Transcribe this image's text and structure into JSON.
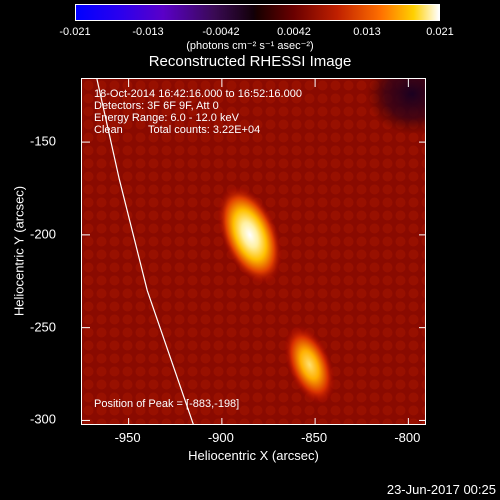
{
  "chart_data": {
    "type": "heatmap",
    "title": "Reconstructed RHESSI Image",
    "xlabel": "Heliocentric X (arcsec)",
    "ylabel": "Heliocentric Y (arcsec)",
    "xlim": [
      -975,
      -790
    ],
    "ylim": [
      -303,
      -116
    ],
    "xticks": [
      "-950",
      "-900",
      "-850",
      "-800"
    ],
    "xtick_values": [
      -950,
      -900,
      -850,
      -800
    ],
    "yticks": [
      "-150",
      "-200",
      "-250",
      "-300"
    ],
    "ytick_values": [
      -150,
      -200,
      -250,
      -300
    ],
    "colorbar": {
      "min": -0.021,
      "max": 0.021,
      "ticks": [
        "-0.021",
        "-0.013",
        "-0.0042",
        "0.0042",
        "0.013",
        "0.021"
      ],
      "tick_values": [
        -0.021,
        -0.0126,
        -0.0042,
        0.0042,
        0.0126,
        0.021
      ],
      "units_label": "(photons cm⁻² s⁻¹ asec⁻²)",
      "colormap": "blue-purple-black-red-yellow-white"
    },
    "sources": [
      {
        "x": -885,
        "y": -200,
        "peak": 0.021
      },
      {
        "x": -853,
        "y": -270,
        "peak": 0.016
      }
    ],
    "limb_curve": [
      [
        -967,
        -116
      ],
      [
        -955,
        -170
      ],
      [
        -940,
        -230
      ],
      [
        -915,
        -303
      ]
    ]
  },
  "annotations": {
    "time_range": "18-Oct-2014 16:42:16.000 to 16:52:16.000",
    "detectors": "Detectors: 3F 6F 9F, Att 0",
    "energy_range": "Energy Range: 6.0 - 12.0 keV",
    "clean": "Clean",
    "total_counts": "Total counts: 3.22E+04",
    "peak_position": "Position of Peak = [-883,-198]"
  },
  "timestamp": "23-Jun-2017 00:25",
  "colors": {
    "limb": "#ffffff",
    "background": "#000000"
  }
}
